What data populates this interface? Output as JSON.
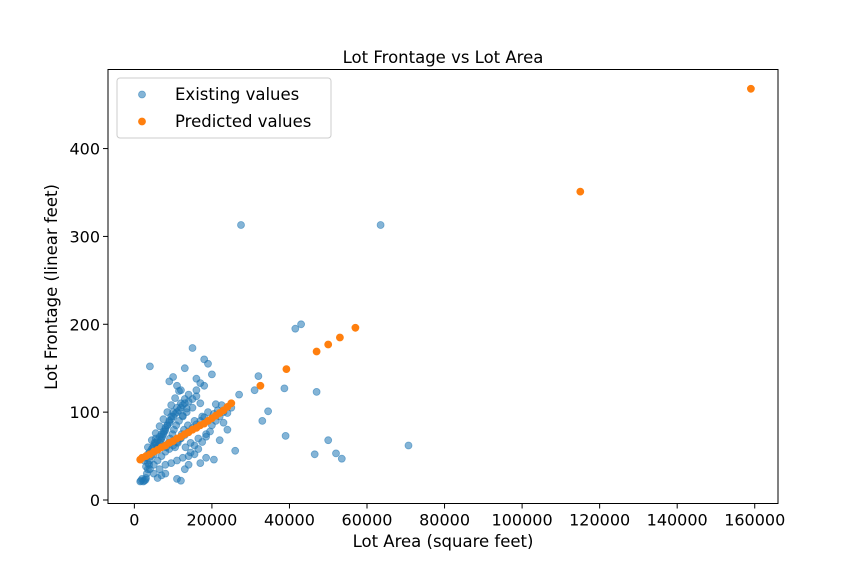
{
  "chart_data": {
    "type": "scatter",
    "title": "Lot Frontage vs Lot Area",
    "xlabel": "Lot Area (square feet)",
    "ylabel": "Lot Frontage (linear feet)",
    "xlim": [
      -6800,
      166000
    ],
    "ylim": [
      -4,
      490
    ],
    "xticks": [
      0,
      20000,
      40000,
      60000,
      80000,
      100000,
      120000,
      140000,
      160000
    ],
    "yticks": [
      0,
      100,
      200,
      300,
      400
    ],
    "legend": "upper-left",
    "grid": false,
    "series": [
      {
        "name": "Existing values",
        "color": "#1f77b4",
        "alpha": 0.55,
        "points": [
          [
            1500,
            21
          ],
          [
            1700,
            22
          ],
          [
            2000,
            24
          ],
          [
            2300,
            21
          ],
          [
            2600,
            22
          ],
          [
            2900,
            23
          ],
          [
            3000,
            25
          ],
          [
            3200,
            30
          ],
          [
            3500,
            35
          ],
          [
            3800,
            40
          ],
          [
            4000,
            45
          ],
          [
            4300,
            50
          ],
          [
            4500,
            55
          ],
          [
            4800,
            60
          ],
          [
            5000,
            52
          ],
          [
            5200,
            65
          ],
          [
            5500,
            70
          ],
          [
            5800,
            58
          ],
          [
            6000,
            60
          ],
          [
            6200,
            62
          ],
          [
            6500,
            65
          ],
          [
            6800,
            68
          ],
          [
            7000,
            70
          ],
          [
            7200,
            72
          ],
          [
            7500,
            75
          ],
          [
            7800,
            78
          ],
          [
            8000,
            80
          ],
          [
            8200,
            60
          ],
          [
            8500,
            85
          ],
          [
            8800,
            65
          ],
          [
            9000,
            90
          ],
          [
            9200,
            70
          ],
          [
            9500,
            95
          ],
          [
            9800,
            75
          ],
          [
            10000,
            100
          ],
          [
            10200,
            80
          ],
          [
            10500,
            60
          ],
          [
            10800,
            85
          ],
          [
            11000,
            105
          ],
          [
            11200,
            65
          ],
          [
            11500,
            90
          ],
          [
            11800,
            70
          ],
          [
            12000,
            110
          ],
          [
            12200,
            75
          ],
          [
            12500,
            95
          ],
          [
            12800,
            80
          ],
          [
            13000,
            115
          ],
          [
            13200,
            60
          ],
          [
            13500,
            100
          ],
          [
            13800,
            85
          ],
          [
            14000,
            120
          ],
          [
            14500,
            65
          ],
          [
            15000,
            105
          ],
          [
            15500,
            90
          ],
          [
            16000,
            125
          ],
          [
            16500,
            70
          ],
          [
            17000,
            110
          ],
          [
            17500,
            95
          ],
          [
            18000,
            130
          ],
          [
            18500,
            75
          ],
          [
            19000,
            100
          ],
          [
            20000,
            85
          ],
          [
            21000,
            90
          ],
          [
            22000,
            95
          ],
          [
            23000,
            100
          ],
          [
            24000,
            80
          ],
          [
            25000,
            105
          ],
          [
            26000,
            56
          ],
          [
            27000,
            120
          ],
          [
            4000,
            152
          ],
          [
            15000,
            173
          ],
          [
            18000,
            160
          ],
          [
            19000,
            155
          ],
          [
            20000,
            143
          ],
          [
            20500,
            46
          ],
          [
            21000,
            109
          ],
          [
            22000,
            68
          ],
          [
            23000,
            88
          ],
          [
            24000,
            99
          ],
          [
            11000,
            24
          ],
          [
            12000,
            22
          ],
          [
            13000,
            35
          ],
          [
            14000,
            40
          ],
          [
            6000,
            25
          ],
          [
            7000,
            28
          ],
          [
            8000,
            30
          ],
          [
            3000,
            38
          ],
          [
            3500,
            42
          ],
          [
            9000,
            135
          ],
          [
            10000,
            140
          ],
          [
            11000,
            130
          ],
          [
            12000,
            125
          ],
          [
            13000,
            150
          ],
          [
            16000,
            138
          ],
          [
            17000,
            133
          ],
          [
            27500,
            313
          ],
          [
            31000,
            125
          ],
          [
            32000,
            141
          ],
          [
            33000,
            90
          ],
          [
            34500,
            101
          ],
          [
            38700,
            127
          ],
          [
            39000,
            73
          ],
          [
            41500,
            195
          ],
          [
            43000,
            200
          ],
          [
            46500,
            52
          ],
          [
            47000,
            123
          ],
          [
            50000,
            68
          ],
          [
            52000,
            53
          ],
          [
            53500,
            47
          ],
          [
            63500,
            313
          ],
          [
            70700,
            62
          ],
          [
            2500,
            45
          ],
          [
            3000,
            48
          ],
          [
            3500,
            52
          ],
          [
            4000,
            55
          ],
          [
            4500,
            58
          ],
          [
            5000,
            62
          ],
          [
            5500,
            65
          ],
          [
            6000,
            68
          ],
          [
            6500,
            72
          ],
          [
            7000,
            75
          ],
          [
            7500,
            78
          ],
          [
            8000,
            82
          ],
          [
            8500,
            85
          ],
          [
            9000,
            88
          ],
          [
            9500,
            92
          ],
          [
            10000,
            95
          ],
          [
            10500,
            98
          ],
          [
            11000,
            100
          ],
          [
            11500,
            102
          ],
          [
            12000,
            105
          ],
          [
            12500,
            108
          ],
          [
            13000,
            110
          ],
          [
            14000,
            112
          ],
          [
            15000,
            115
          ],
          [
            16000,
            118
          ],
          [
            4000,
            35
          ],
          [
            5000,
            40
          ],
          [
            6000,
            45
          ],
          [
            7000,
            50
          ],
          [
            8000,
            55
          ],
          [
            9000,
            58
          ],
          [
            10000,
            62
          ],
          [
            11000,
            66
          ],
          [
            12000,
            70
          ],
          [
            13000,
            74
          ],
          [
            14000,
            78
          ],
          [
            15000,
            82
          ],
          [
            16000,
            86
          ],
          [
            17000,
            90
          ],
          [
            18000,
            94
          ],
          [
            3500,
            60
          ],
          [
            4500,
            68
          ],
          [
            5500,
            76
          ],
          [
            6500,
            84
          ],
          [
            7500,
            92
          ],
          [
            8500,
            100
          ],
          [
            9500,
            108
          ],
          [
            10500,
            116
          ],
          [
            11500,
            124
          ],
          [
            12500,
            96
          ],
          [
            13500,
            104
          ],
          [
            14500,
            54
          ],
          [
            15500,
            62
          ],
          [
            16500,
            58
          ],
          [
            17500,
            66
          ],
          [
            18500,
            72
          ],
          [
            19500,
            78
          ],
          [
            20500,
            98
          ],
          [
            21500,
            102
          ],
          [
            22500,
            108
          ],
          [
            5000,
            30
          ],
          [
            6500,
            35
          ],
          [
            8000,
            40
          ],
          [
            9500,
            42
          ],
          [
            11000,
            45
          ],
          [
            12500,
            48
          ],
          [
            14000,
            50
          ],
          [
            15500,
            52
          ],
          [
            17000,
            42
          ],
          [
            18500,
            48
          ]
        ]
      },
      {
        "name": "Predicted values",
        "color": "#ff7f0e",
        "alpha": 1,
        "points": [
          [
            1500,
            46
          ],
          [
            2000,
            48
          ],
          [
            3000,
            50
          ],
          [
            4000,
            52
          ],
          [
            5000,
            55
          ],
          [
            6000,
            57
          ],
          [
            7000,
            60
          ],
          [
            8000,
            62
          ],
          [
            9000,
            65
          ],
          [
            10000,
            67
          ],
          [
            11000,
            70
          ],
          [
            12000,
            72
          ],
          [
            13000,
            75
          ],
          [
            14000,
            77
          ],
          [
            15000,
            80
          ],
          [
            16000,
            82
          ],
          [
            17000,
            85
          ],
          [
            18000,
            87
          ],
          [
            19000,
            90
          ],
          [
            20000,
            93
          ],
          [
            21000,
            96
          ],
          [
            22000,
            99
          ],
          [
            23000,
            102
          ],
          [
            24000,
            106
          ],
          [
            25000,
            110
          ],
          [
            32500,
            130
          ],
          [
            39200,
            149
          ],
          [
            47000,
            169
          ],
          [
            50000,
            177
          ],
          [
            53000,
            185
          ],
          [
            57000,
            196
          ],
          [
            115000,
            351
          ],
          [
            159000,
            468
          ]
        ]
      }
    ]
  }
}
